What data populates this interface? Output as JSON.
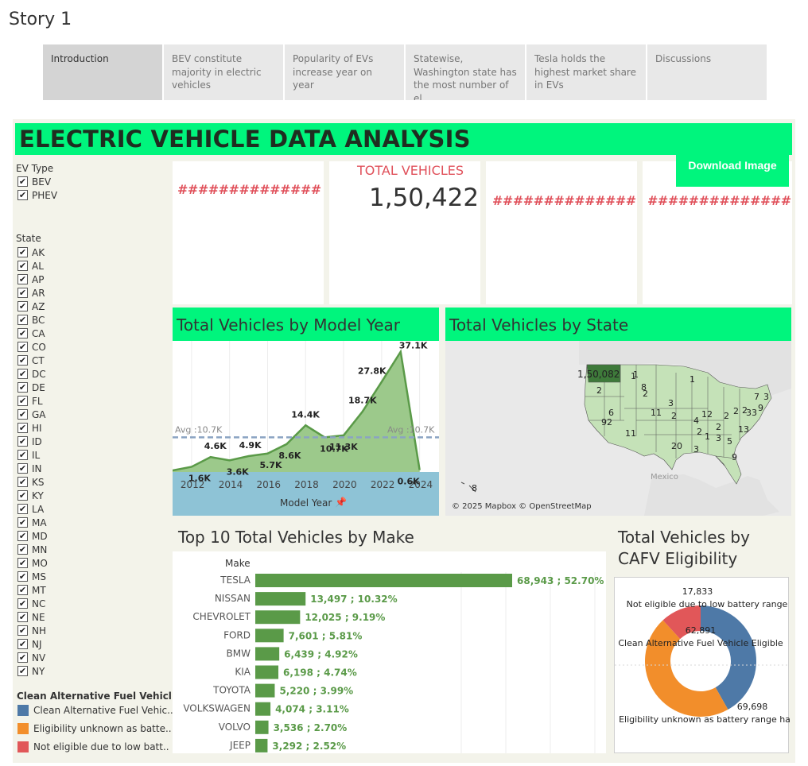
{
  "story": {
    "title": "Story 1",
    "tabs": [
      "Introduction",
      "BEV constitute majority in electric vehicles",
      "Popularity of EVs increase year on year",
      "Statewise, Washington state has the most number of el..",
      "Tesla holds the highest market share in EVs",
      "Discussions"
    ]
  },
  "dashboard": {
    "title": "ELECTRIC VEHICLE DATA ANALYSIS",
    "download_label": "Download Image"
  },
  "filters": {
    "ev_type_title": "EV Type",
    "ev_types": [
      "BEV",
      "PHEV"
    ],
    "state_title": "State",
    "states": [
      "AK",
      "AL",
      "AP",
      "AR",
      "AZ",
      "BC",
      "CA",
      "CO",
      "CT",
      "DC",
      "DE",
      "FL",
      "GA",
      "HI",
      "ID",
      "IL",
      "IN",
      "KS",
      "KY",
      "LA",
      "MA",
      "MD",
      "MN",
      "MO",
      "MS",
      "MT",
      "NC",
      "NE",
      "NH",
      "NJ",
      "NV",
      "NY"
    ],
    "check_glyph": "✔"
  },
  "cafv_legend": {
    "title": "Clean Alternative Fuel Vehicle (C..",
    "items": [
      {
        "label": "Clean Alternative Fuel Vehic..",
        "color": "#4e79a7"
      },
      {
        "label": "Eligibility unknown as batte..",
        "color": "#f28e2b"
      },
      {
        "label": "Not eligible due to low batt..",
        "color": "#e15759"
      }
    ]
  },
  "kpis": {
    "hash_left": "##############",
    "total_label": "TOTAL VEHICLES",
    "total_value": "1,50,422",
    "hash_right1": "##############",
    "hash_right2": "##############"
  },
  "model_year_panel": {
    "title": "Total Vehicles by Model Year",
    "avg_label": "Avg :10.7K",
    "x_title": "Model Year",
    "x_ticks": [
      "2012",
      "2014",
      "2016",
      "2018",
      "2020",
      "2022",
      "2024"
    ]
  },
  "state_panel": {
    "title": "Total Vehicles by State",
    "copyright": "© 2025 Mapbox © OpenStreetMap",
    "mexico_label": "Mexico",
    "wa_label": "1,50,082",
    "state_labels": [
      "1",
      "8",
      "2",
      "2",
      "3",
      "1",
      "11",
      "2",
      "12",
      "2",
      "2",
      "2",
      "7",
      "3",
      "9",
      "33",
      "13",
      "2",
      "1",
      "3",
      "5",
      "4",
      "6",
      "92",
      "11",
      "2",
      "20",
      "3",
      "9",
      "1"
    ],
    "hawaii_label": "8"
  },
  "make_panel": {
    "title": "Top 10 Total Vehicles by Make",
    "column_header": "Make"
  },
  "cafv_panel": {
    "title_line1": "Total Vehicles by",
    "title_line2": "CAFV Eligibility"
  },
  "chart_data": [
    {
      "type": "area",
      "title": "Total Vehicles by Model Year",
      "xlabel": "Model Year",
      "ylabel": "",
      "x": [
        2011,
        2012,
        2013,
        2014,
        2015,
        2016,
        2017,
        2018,
        2019,
        2020,
        2021,
        2022,
        2023,
        2024
      ],
      "values": [
        0.5,
        1.6,
        4.6,
        3.6,
        4.9,
        5.7,
        8.6,
        14.4,
        10.7,
        11.3,
        18.7,
        27.8,
        37.1,
        0.6
      ],
      "labels": [
        "",
        "1.6K",
        "4.6K",
        "3.6K",
        "4.9K",
        "5.7K",
        "8.6K",
        "14.4K",
        "10.7K",
        "11.3K",
        "18.7K",
        "27.8K",
        "37.1K",
        "0.6K"
      ],
      "average": 10.7,
      "unit": "thousands",
      "colors": {
        "fill": "#9cc98b",
        "line": "#5a9a48",
        "avg": "#8aa3c2",
        "band": "#8ec3d6"
      }
    },
    {
      "type": "bar",
      "title": "Top 10 Total Vehicles by Make",
      "categories": [
        "TESLA",
        "NISSAN",
        "CHEVROLET",
        "FORD",
        "BMW",
        "KIA",
        "TOYOTA",
        "VOLKSWAGEN",
        "VOLVO",
        "JEEP"
      ],
      "values": [
        68943,
        13497,
        12025,
        7601,
        6439,
        6198,
        5220,
        4074,
        3536,
        3292
      ],
      "labels": [
        "68,943 ; 52.70%",
        "13,497 ; 10.32%",
        "12,025 ; 9.19%",
        "7,601 ; 5.81%",
        "6,439 ; 4.92%",
        "6,198 ; 4.74%",
        "5,220 ; 3.99%",
        "4,074 ; 3.11%",
        "3,536 ; 2.70%",
        "3,292 ; 2.52%"
      ],
      "color": "#5a9a48"
    },
    {
      "type": "pie",
      "title": "Total Vehicles by CAFV Eligibility",
      "categories": [
        "Clean Alternative Fuel Vehicle Eligible",
        "Eligibility unknown as battery range ha",
        "Not eligible due to low battery range"
      ],
      "values": [
        62891,
        69698,
        17833
      ],
      "labels": [
        "62,891",
        "69,698",
        "17,833"
      ],
      "colors": [
        "#4e79a7",
        "#f28e2b",
        "#e15759"
      ]
    }
  ]
}
